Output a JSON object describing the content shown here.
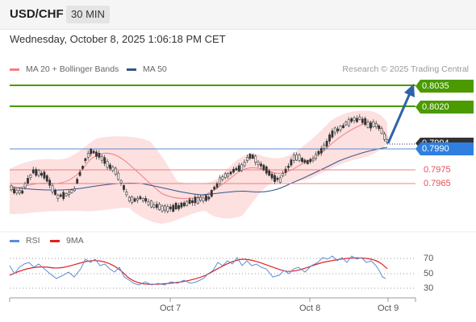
{
  "header": {
    "symbol": "USD/CHF",
    "timeframe": "30 MIN"
  },
  "datetime": "Wednesday, October 8, 2025 1:06:18 PM CET",
  "legend": {
    "ma20_label": "MA 20 + Bollinger Bands",
    "ma50_label": "MA 50",
    "credit": "Research © 2025 Trading Central",
    "rsi_label": "RSI",
    "rsi_ma_label": "9MA"
  },
  "colors": {
    "green": "#4a9a00",
    "blue_line": "#5b8ed6",
    "ma50": "#34568b",
    "ma20": "#f08080",
    "band_fill": "#fde0e0",
    "red_text": "#e74c5a",
    "current_tag": "#2f7fe0",
    "price_tag": "#333333",
    "arrow": "#2e63a6",
    "rsi_line": "#5b8ed6",
    "rsi_ma": "#e02020"
  },
  "levels": {
    "r2": "0.8035",
    "r1": "0.8020",
    "price": "0.7994",
    "current": "0.7990",
    "s1": "0.7975",
    "s2": "0.7965"
  },
  "rsi_ticks": [
    "70",
    "50",
    "30"
  ],
  "x_axis": [
    "Oct 7",
    "Oct 8",
    "Oct 9"
  ]
}
